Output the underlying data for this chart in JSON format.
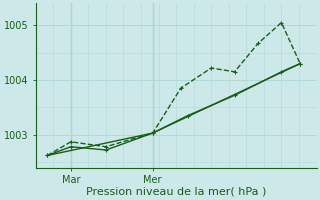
{
  "bg_color": "#cce8e8",
  "grid_color": "#b0d8d8",
  "line_color": "#1a5c1a",
  "xlabel": "Pression niveau de la mer( hPa )",
  "xlabel_color": "#1a5c1a",
  "tick_color": "#1a5c1a",
  "axis_color": "#1a5c1a",
  "yticks": [
    1003,
    1004,
    1005
  ],
  "ylim": [
    1002.4,
    1005.4
  ],
  "xlim": [
    0,
    12
  ],
  "xtick_labels": [
    "Mar",
    "Mer"
  ],
  "xtick_positions": [
    1.5,
    5.0
  ],
  "vline_x": [
    1.5,
    5.0
  ],
  "series1_x": [
    0.5,
    1.5,
    3.0,
    5.0,
    6.2,
    7.5,
    8.5,
    9.5,
    10.5,
    11.3
  ],
  "series1_y": [
    1002.62,
    1002.87,
    1002.78,
    1003.03,
    1003.85,
    1004.22,
    1004.15,
    1004.67,
    1005.05,
    1004.3
  ],
  "series2_x": [
    0.5,
    1.5,
    3.0,
    5.0,
    6.5,
    8.5,
    10.5,
    11.3
  ],
  "series2_y": [
    1002.62,
    1002.78,
    1002.72,
    1003.03,
    1003.35,
    1003.72,
    1004.15,
    1004.3
  ],
  "series3_x": [
    0.5,
    5.0,
    11.3
  ],
  "series3_y": [
    1002.62,
    1003.03,
    1004.3
  ],
  "vline_color": "#4a8a4a",
  "axis_linewidth": 0.8,
  "line_width": 1.0,
  "marker_size": 3.5,
  "xlabel_fontsize": 8,
  "tick_fontsize": 7
}
